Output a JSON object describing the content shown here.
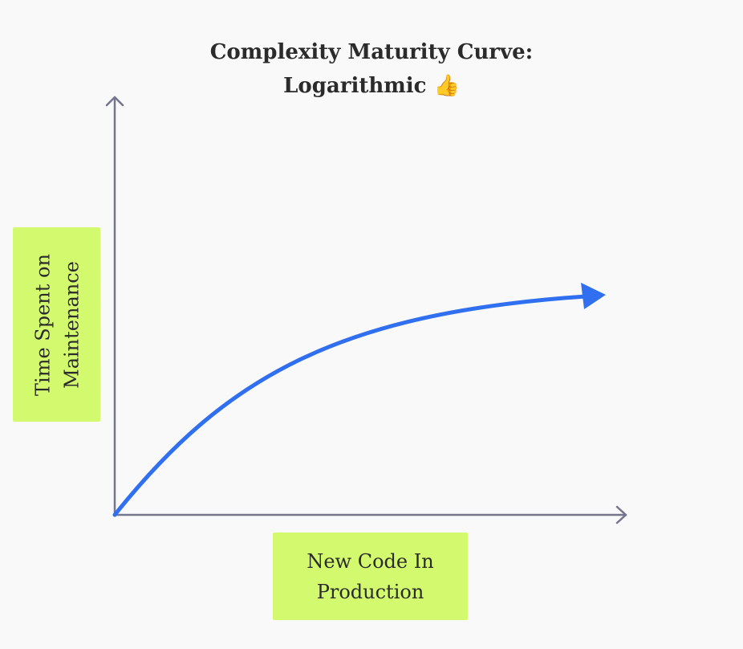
{
  "title": "Complexity Maturity Curve: Logarithmic 👍",
  "y_axis_label": "Time Spent on Maintenance",
  "x_axis_label": "New Code In Production"
}
